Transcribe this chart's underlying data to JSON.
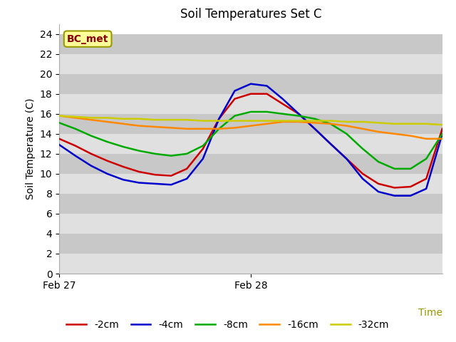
{
  "title": "Soil Temperatures Set C",
  "xlabel": "Time",
  "ylabel": "Soil Temperature (C)",
  "ylim": [
    0,
    25
  ],
  "yticks": [
    0,
    2,
    4,
    6,
    8,
    10,
    12,
    14,
    16,
    18,
    20,
    22,
    24
  ],
  "xlim": [
    0,
    1
  ],
  "xtick_positions": [
    0.0,
    0.5
  ],
  "xtick_labels": [
    "Feb 27",
    "Feb 28"
  ],
  "fig_bg_color": "#ffffff",
  "plot_bg_color": "#d8d8d8",
  "band_light_color": "#e0e0e0",
  "band_dark_color": "#c8c8c8",
  "annotation_text": "BC_met",
  "annotation_bg": "#ffff99",
  "annotation_border": "#999900",
  "annotation_text_color": "#880000",
  "time_label_color": "#999900",
  "series": {
    "-2cm": {
      "color": "#cc0000",
      "x": [
        0.0,
        0.042,
        0.083,
        0.125,
        0.167,
        0.208,
        0.25,
        0.292,
        0.333,
        0.375,
        0.417,
        0.458,
        0.5,
        0.542,
        0.583,
        0.625,
        0.667,
        0.708,
        0.75,
        0.792,
        0.833,
        0.875,
        0.917,
        0.958,
        1.0
      ],
      "y": [
        13.5,
        12.8,
        12.0,
        11.3,
        10.7,
        10.2,
        9.9,
        9.8,
        10.5,
        12.5,
        15.5,
        17.5,
        18.0,
        18.0,
        17.0,
        16.0,
        14.5,
        13.0,
        11.5,
        10.0,
        9.0,
        8.6,
        8.7,
        9.5,
        14.5
      ]
    },
    "-4cm": {
      "color": "#0000cc",
      "x": [
        0.0,
        0.042,
        0.083,
        0.125,
        0.167,
        0.208,
        0.25,
        0.292,
        0.333,
        0.375,
        0.417,
        0.458,
        0.5,
        0.542,
        0.583,
        0.625,
        0.667,
        0.708,
        0.75,
        0.792,
        0.833,
        0.875,
        0.917,
        0.958,
        1.0
      ],
      "y": [
        12.9,
        11.8,
        10.8,
        10.0,
        9.4,
        9.1,
        9.0,
        8.9,
        9.5,
        11.5,
        15.5,
        18.3,
        19.0,
        18.8,
        17.5,
        16.0,
        14.5,
        13.0,
        11.5,
        9.5,
        8.2,
        7.8,
        7.8,
        8.5,
        14.0
      ]
    },
    "-8cm": {
      "color": "#00aa00",
      "x": [
        0.0,
        0.042,
        0.083,
        0.125,
        0.167,
        0.208,
        0.25,
        0.292,
        0.333,
        0.375,
        0.417,
        0.458,
        0.5,
        0.542,
        0.583,
        0.625,
        0.667,
        0.708,
        0.75,
        0.792,
        0.833,
        0.875,
        0.917,
        0.958,
        1.0
      ],
      "y": [
        15.1,
        14.5,
        13.8,
        13.2,
        12.7,
        12.3,
        12.0,
        11.8,
        12.0,
        12.8,
        14.5,
        15.8,
        16.2,
        16.2,
        16.0,
        15.8,
        15.5,
        15.0,
        14.0,
        12.5,
        11.2,
        10.5,
        10.5,
        11.5,
        14.0
      ]
    },
    "-16cm": {
      "color": "#ff8800",
      "x": [
        0.0,
        0.042,
        0.083,
        0.125,
        0.167,
        0.208,
        0.25,
        0.292,
        0.333,
        0.375,
        0.417,
        0.458,
        0.5,
        0.542,
        0.583,
        0.625,
        0.667,
        0.708,
        0.75,
        0.792,
        0.833,
        0.875,
        0.917,
        0.958,
        1.0
      ],
      "y": [
        15.8,
        15.6,
        15.4,
        15.2,
        15.0,
        14.8,
        14.7,
        14.6,
        14.5,
        14.5,
        14.5,
        14.6,
        14.8,
        15.0,
        15.2,
        15.2,
        15.1,
        15.0,
        14.8,
        14.5,
        14.2,
        14.0,
        13.8,
        13.5,
        13.5
      ]
    },
    "-32cm": {
      "color": "#cccc00",
      "x": [
        0.0,
        0.042,
        0.083,
        0.125,
        0.167,
        0.208,
        0.25,
        0.292,
        0.333,
        0.375,
        0.417,
        0.458,
        0.5,
        0.542,
        0.583,
        0.625,
        0.667,
        0.708,
        0.75,
        0.792,
        0.833,
        0.875,
        0.917,
        0.958,
        1.0
      ],
      "y": [
        15.8,
        15.7,
        15.6,
        15.6,
        15.5,
        15.5,
        15.4,
        15.4,
        15.4,
        15.3,
        15.3,
        15.3,
        15.3,
        15.3,
        15.3,
        15.3,
        15.3,
        15.3,
        15.2,
        15.2,
        15.1,
        15.0,
        15.0,
        15.0,
        14.9
      ]
    }
  },
  "legend_order": [
    "-2cm",
    "-4cm",
    "-8cm",
    "-16cm",
    "-32cm"
  ],
  "line_width": 1.8
}
